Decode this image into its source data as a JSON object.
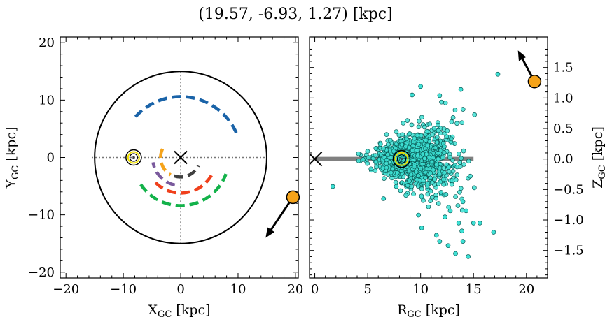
{
  "title": "(19.57, -6.93, 1.27) [kpc]",
  "chart_data": [
    {
      "type": "scatter",
      "panel": "left",
      "xlabel": "X",
      "xlabel_sub": "GC",
      "xlabel_unit": " [kpc]",
      "ylabel": "Y",
      "ylabel_sub": "GC",
      "ylabel_unit": " [kpc]",
      "xlim": [
        -21,
        20.5
      ],
      "ylim": [
        -21,
        21
      ],
      "xticks": [
        -20,
        -10,
        0,
        10,
        20
      ],
      "xtick_labels": [
        "−20",
        "−10",
        "0",
        "10",
        "20"
      ],
      "yticks": [
        -20,
        -10,
        0,
        10,
        20
      ],
      "ytick_labels": [
        "−20",
        "−10",
        "0",
        "10",
        "20"
      ],
      "galactic_circle_radius": 15,
      "center_marker": [
        0,
        0
      ],
      "sun": [
        -8.2,
        0.0
      ],
      "object": {
        "x": 19.57,
        "y": -6.93,
        "arrow_to": [
          14.8,
          -14.0
        ],
        "color": "#f5a31a"
      },
      "arms": [
        {
          "color": "#1a63a8",
          "r": 10.6,
          "start_deg": 138,
          "end_deg": 23
        },
        {
          "color": "#13b24a",
          "r": 8.4,
          "start_deg": 214,
          "end_deg": 340
        },
        {
          "color": "#f0401c",
          "r": 6.2,
          "start_deg": 225,
          "end_deg": 335
        },
        {
          "color": "#f5a31a",
          "r": 3.5,
          "start_deg": 155,
          "end_deg": 240
        },
        {
          "color": "#7a5a9d",
          "r": 4.9,
          "start_deg": 258,
          "end_deg": 190
        },
        {
          "color": "#404040",
          "r": 3.4,
          "start_deg": 250,
          "end_deg": 335
        }
      ]
    },
    {
      "type": "scatter",
      "panel": "right",
      "xlabel": "R",
      "xlabel_sub": "GC",
      "xlabel_unit": " [kpc]",
      "ylabel": "Z",
      "ylabel_sub": "GC",
      "ylabel_unit": " [kpc]",
      "xlim": [
        -0.5,
        22
      ],
      "ylim": [
        -1.95,
        2.0
      ],
      "xticks": [
        0,
        5,
        10,
        15,
        20
      ],
      "xtick_labels": [
        "0",
        "5",
        "10",
        "15",
        "20"
      ],
      "yticks": [
        -1.5,
        -1.0,
        -0.5,
        0.0,
        0.5,
        1.0,
        1.5
      ],
      "ytick_labels": [
        "−1.5",
        "−1.0",
        "−0.5",
        "0.0",
        "0.5",
        "1.0",
        "1.5"
      ],
      "disk_line": {
        "x": [
          0,
          15
        ],
        "y": 0
      },
      "center_marker": [
        0,
        0
      ],
      "sun": [
        8.2,
        0.0
      ],
      "object": {
        "r": 20.77,
        "z": 1.27,
        "arrow_to": [
          19.2,
          1.78
        ],
        "color": "#f5a31a"
      },
      "cloud": {
        "center_r": 9.5,
        "spread_r": 2.4,
        "spread_z": 0.35,
        "n_points": 900,
        "color": "#3de0d4",
        "edge_color": "#0a5a55"
      },
      "outliers": [
        [
          17.3,
          1.39
        ],
        [
          13.8,
          1.14
        ],
        [
          10.0,
          1.19
        ],
        [
          11.8,
          1.04
        ],
        [
          9.2,
          1.05
        ],
        [
          1.7,
          -0.45
        ],
        [
          6.5,
          -0.65
        ],
        [
          7.7,
          -0.45
        ],
        [
          12.3,
          -0.95
        ],
        [
          14.0,
          -0.7
        ],
        [
          12.8,
          -0.85
        ],
        [
          13.6,
          -1.05
        ],
        [
          14.3,
          -0.85
        ],
        [
          15.0,
          -1.05
        ],
        [
          16.9,
          -1.2
        ],
        [
          10.1,
          -1.13
        ],
        [
          11.5,
          -1.25
        ],
        [
          13.3,
          -1.55
        ],
        [
          14.5,
          -1.6
        ],
        [
          11.8,
          -1.35
        ],
        [
          14.0,
          -1.35
        ],
        [
          15.6,
          -1.05
        ],
        [
          12.6,
          -1.42
        ],
        [
          13.9,
          -1.18
        ],
        [
          9.8,
          -0.92
        ]
      ]
    }
  ]
}
